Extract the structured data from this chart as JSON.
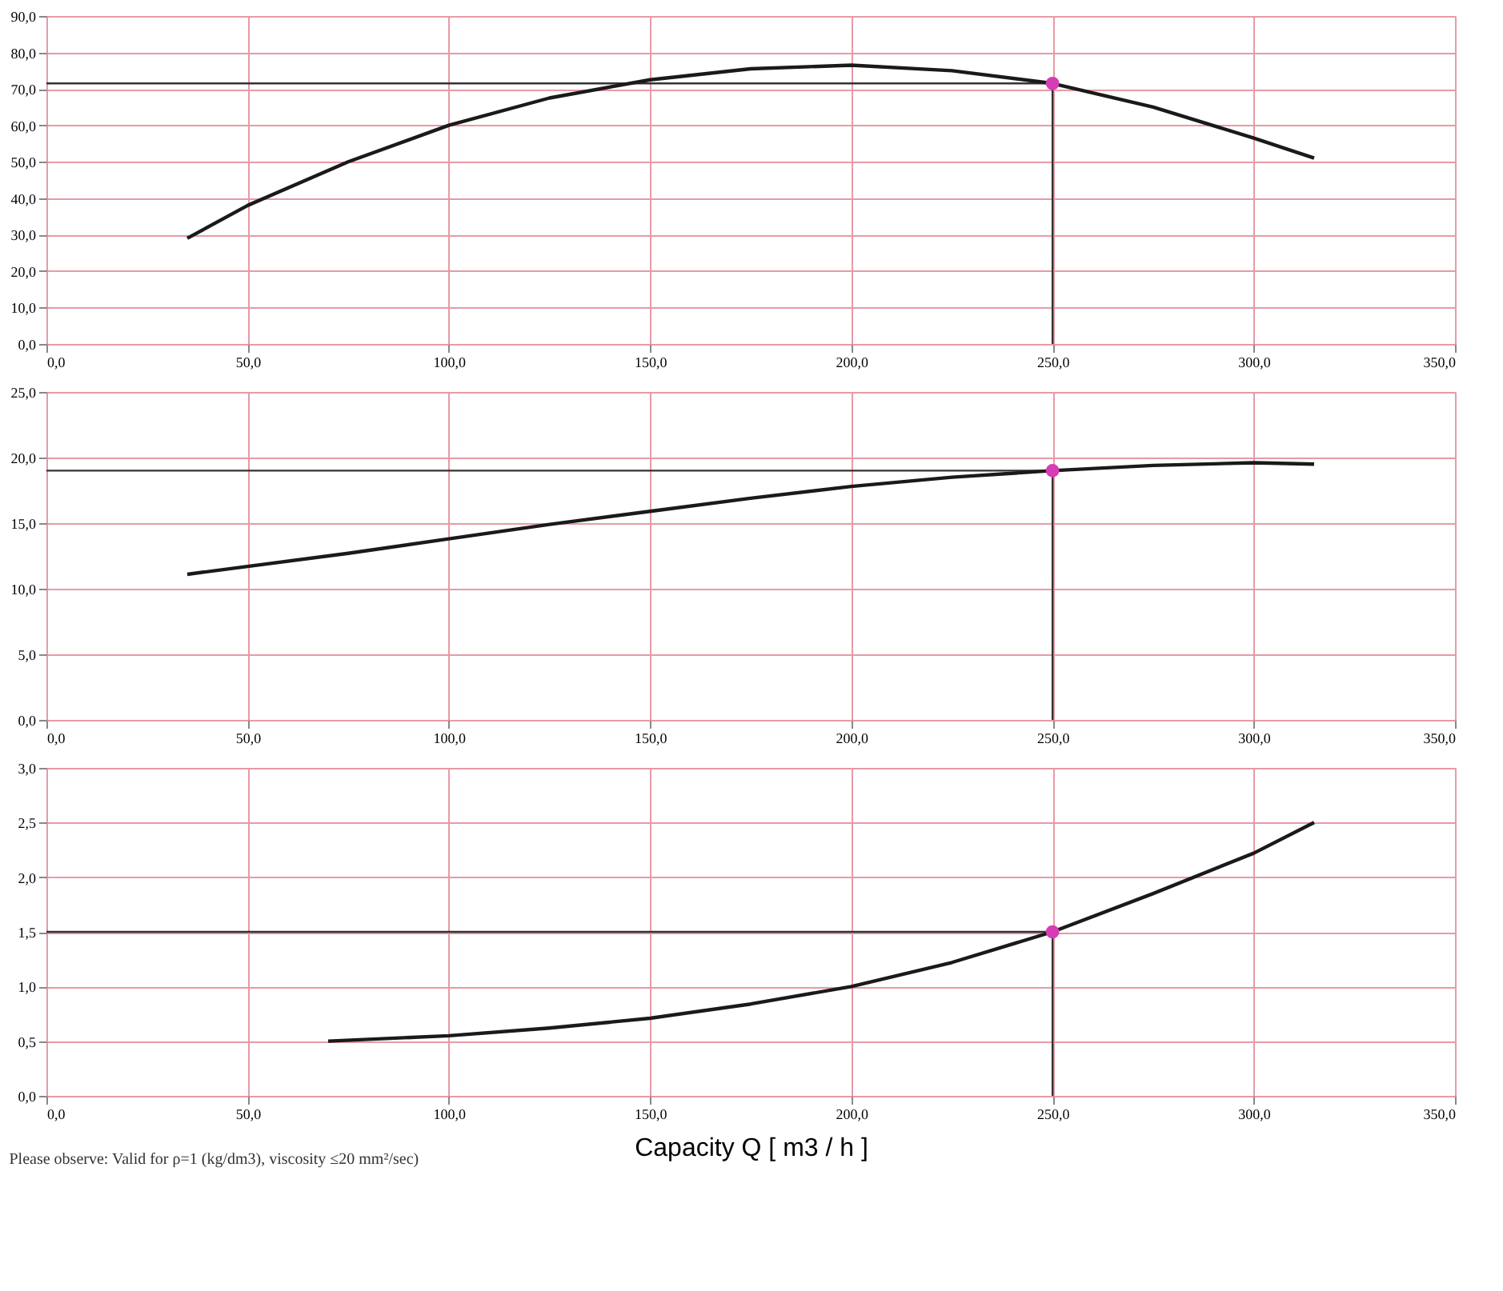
{
  "chart_data": [
    {
      "type": "line",
      "x": [
        35,
        50,
        75,
        100,
        125,
        150,
        175,
        200,
        225,
        250,
        275,
        300,
        315
      ],
      "series": [
        {
          "type": "line",
          "color": "#1a1a1a",
          "values": [
            29,
            38,
            50,
            60,
            67.5,
            72.5,
            75.5,
            76.5,
            75,
            71.5,
            65,
            56.5,
            51
          ]
        },
        {
          "type": "scatter",
          "color": "#d63cb4",
          "values": [
            null,
            null,
            null,
            null,
            null,
            null,
            null,
            null,
            null,
            71.5,
            null,
            null,
            null
          ],
          "marker": "circle"
        }
      ],
      "xlim": [
        0,
        350
      ],
      "ylim": [
        0,
        90
      ],
      "xticks": [
        {
          "value": 0,
          "label": "0,0"
        },
        {
          "value": 50,
          "label": "50,0"
        },
        {
          "value": 100,
          "label": "100,0"
        },
        {
          "value": 150,
          "label": "150,0"
        },
        {
          "value": 200,
          "label": "200,0"
        },
        {
          "value": 250,
          "label": "250,0"
        },
        {
          "value": 300,
          "label": "300,0"
        },
        {
          "value": 350,
          "label": "350,0"
        }
      ],
      "yticks": [
        {
          "value": 0,
          "label": "0,0"
        },
        {
          "value": 10,
          "label": "10,0"
        },
        {
          "value": 20,
          "label": "20,0"
        },
        {
          "value": 30,
          "label": "30,0"
        },
        {
          "value": 40,
          "label": "40,0"
        },
        {
          "value": 50,
          "label": "50,0"
        },
        {
          "value": 60,
          "label": "60,0"
        },
        {
          "value": 70,
          "label": "70,0"
        },
        {
          "value": 80,
          "label": "80,0"
        },
        {
          "value": 90,
          "label": "90,0"
        }
      ],
      "ref_lines": [
        {
          "axis": "y",
          "value": 71.5,
          "color": "#333333"
        },
        {
          "axis": "x",
          "value": 250,
          "color": "#333333"
        }
      ],
      "grid": true,
      "line_style": "solid"
    },
    {
      "type": "line",
      "x": [
        35,
        50,
        75,
        100,
        125,
        150,
        175,
        200,
        225,
        250,
        275,
        300,
        315
      ],
      "series": [
        {
          "type": "line",
          "color": "#1a1a1a",
          "values": [
            11.1,
            11.7,
            12.7,
            13.8,
            14.9,
            15.9,
            16.9,
            17.8,
            18.5,
            19.0,
            19.4,
            19.6,
            19.5
          ]
        },
        {
          "type": "scatter",
          "color": "#d63cb4",
          "values": [
            null,
            null,
            null,
            null,
            null,
            null,
            null,
            null,
            null,
            19.0,
            null,
            null,
            null
          ],
          "marker": "circle"
        }
      ],
      "xlim": [
        0,
        350
      ],
      "ylim": [
        0,
        25
      ],
      "xticks": [
        {
          "value": 0,
          "label": "0,0"
        },
        {
          "value": 50,
          "label": "50,0"
        },
        {
          "value": 100,
          "label": "100,0"
        },
        {
          "value": 150,
          "label": "150,0"
        },
        {
          "value": 200,
          "label": "200,0"
        },
        {
          "value": 250,
          "label": "250,0"
        },
        {
          "value": 300,
          "label": "300,0"
        },
        {
          "value": 350,
          "label": "350,0"
        }
      ],
      "yticks": [
        {
          "value": 0,
          "label": "0,0"
        },
        {
          "value": 5,
          "label": "5,0"
        },
        {
          "value": 10,
          "label": "10,0"
        },
        {
          "value": 15,
          "label": "15,0"
        },
        {
          "value": 20,
          "label": "20,0"
        },
        {
          "value": 25,
          "label": "25,0"
        }
      ],
      "ref_lines": [
        {
          "axis": "y",
          "value": 19.0,
          "color": "#333333"
        },
        {
          "axis": "x",
          "value": 250,
          "color": "#333333"
        }
      ],
      "grid": true,
      "line_style": "solid"
    },
    {
      "type": "line",
      "x": [
        70,
        100,
        125,
        150,
        175,
        200,
        225,
        250,
        275,
        300,
        315
      ],
      "series": [
        {
          "type": "line",
          "color": "#1a1a1a",
          "values": [
            0.5,
            0.55,
            0.62,
            0.71,
            0.84,
            1.0,
            1.22,
            1.5,
            1.85,
            2.22,
            2.5
          ]
        },
        {
          "type": "scatter",
          "color": "#d63cb4",
          "values": [
            null,
            null,
            null,
            null,
            null,
            null,
            null,
            1.5,
            null,
            null,
            null
          ],
          "marker": "circle"
        }
      ],
      "xlim": [
        0,
        350
      ],
      "ylim": [
        0,
        3
      ],
      "xticks": [
        {
          "value": 0,
          "label": "0,0"
        },
        {
          "value": 50,
          "label": "50,0"
        },
        {
          "value": 100,
          "label": "100,0"
        },
        {
          "value": 150,
          "label": "150,0"
        },
        {
          "value": 200,
          "label": "200,0"
        },
        {
          "value": 250,
          "label": "250,0"
        },
        {
          "value": 300,
          "label": "300,0"
        },
        {
          "value": 350,
          "label": "350,0"
        }
      ],
      "yticks": [
        {
          "value": 0,
          "label": "0,0"
        },
        {
          "value": 0.5,
          "label": "0,5"
        },
        {
          "value": 1,
          "label": "1,0"
        },
        {
          "value": 1.5,
          "label": "1,5"
        },
        {
          "value": 2,
          "label": "2,0"
        },
        {
          "value": 2.5,
          "label": "2,5"
        },
        {
          "value": 3,
          "label": "3,0"
        }
      ],
      "ref_lines": [
        {
          "axis": "y",
          "value": 1.5,
          "color": "#333333"
        },
        {
          "axis": "x",
          "value": 250,
          "color": "#333333"
        }
      ],
      "xlabel": "Capacity  Q  [ m3 / h ]",
      "annotations": [
        "Please observe: Valid for ρ=1 (kg/dm3), viscosity ≤20 mm²/sec)"
      ],
      "grid": true,
      "line_style": "solid"
    }
  ]
}
